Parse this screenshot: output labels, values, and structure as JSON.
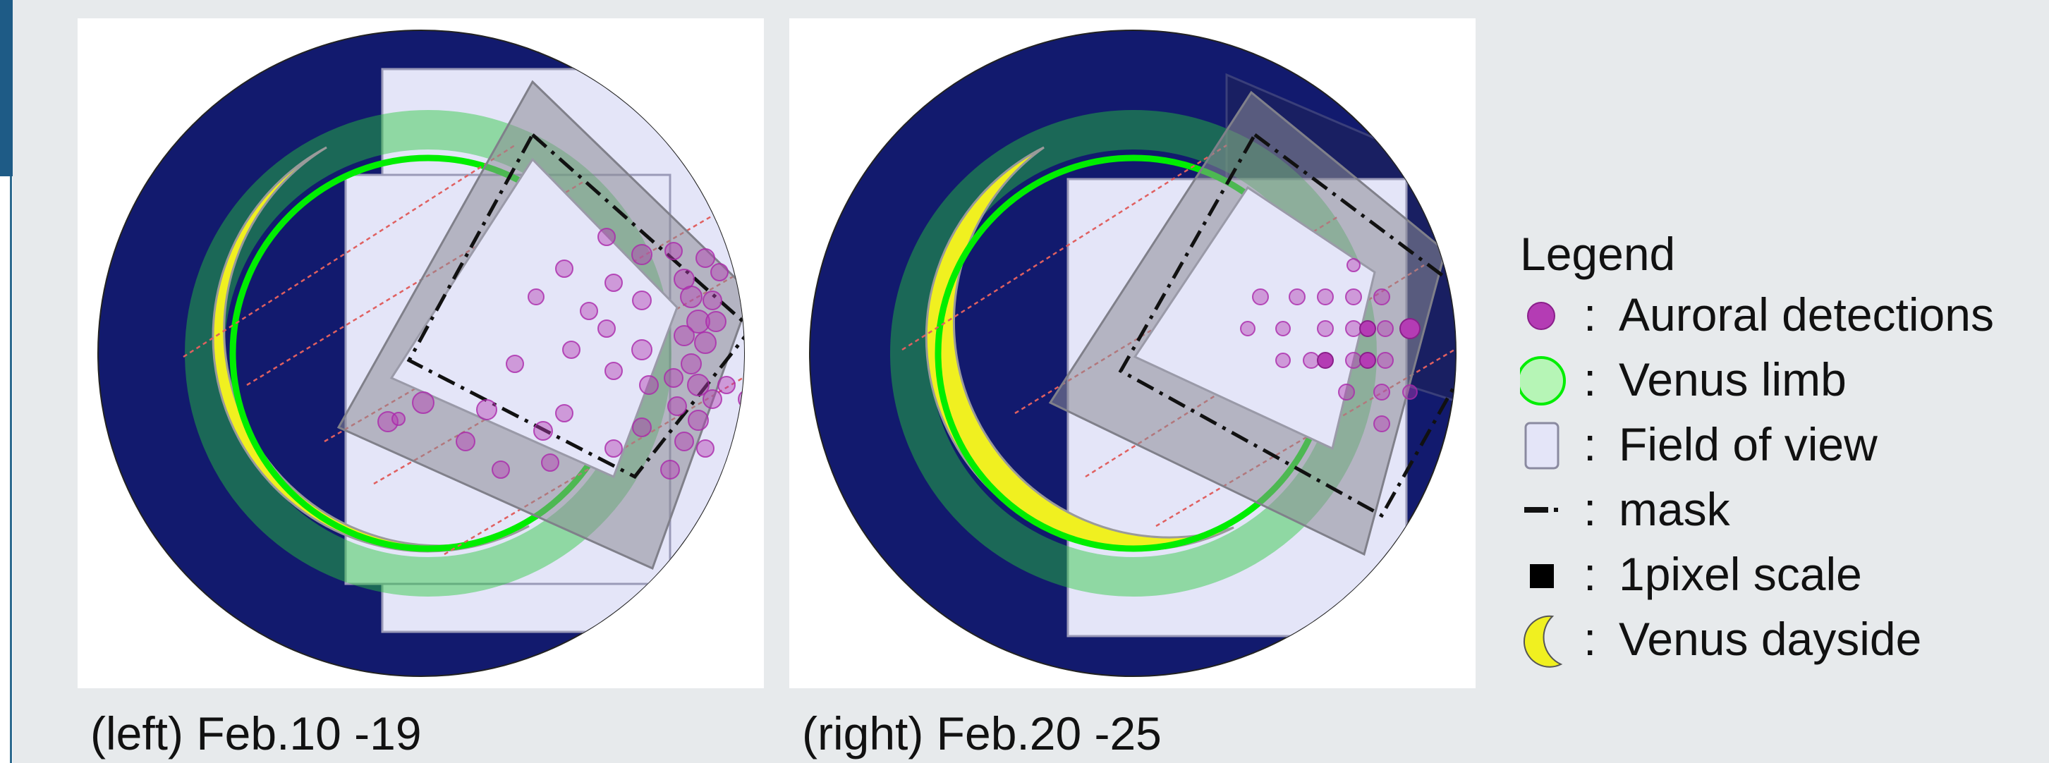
{
  "captions": {
    "left": "(left) Feb.10 -19",
    "right": "(right) Feb.20 -25"
  },
  "legend": {
    "title": "Legend",
    "separator": ":",
    "items": [
      {
        "label": "Auroral detections",
        "icon": "purple-dot-icon"
      },
      {
        "label": "Venus limb",
        "icon": "green-circle-icon"
      },
      {
        "label": "Field of view",
        "icon": "lavender-rectangle-icon"
      },
      {
        "label": "mask",
        "icon": "dash-dot-line-icon"
      },
      {
        "label": "1pixel scale",
        "icon": "black-square-icon"
      },
      {
        "label": "Venus dayside",
        "icon": "yellow-crescent-icon"
      }
    ]
  },
  "colors": {
    "sky": "#121a6e",
    "field_of_view": "#e4e5f8",
    "venus_limb": "#00ee00",
    "limb_band": "#7fe67f",
    "dayside": "#f0f020",
    "auroral_detection": "#b44ab4",
    "mask": "#111111",
    "pixel_scale": "#8c8c96",
    "track_lines": "#e06060"
  }
}
